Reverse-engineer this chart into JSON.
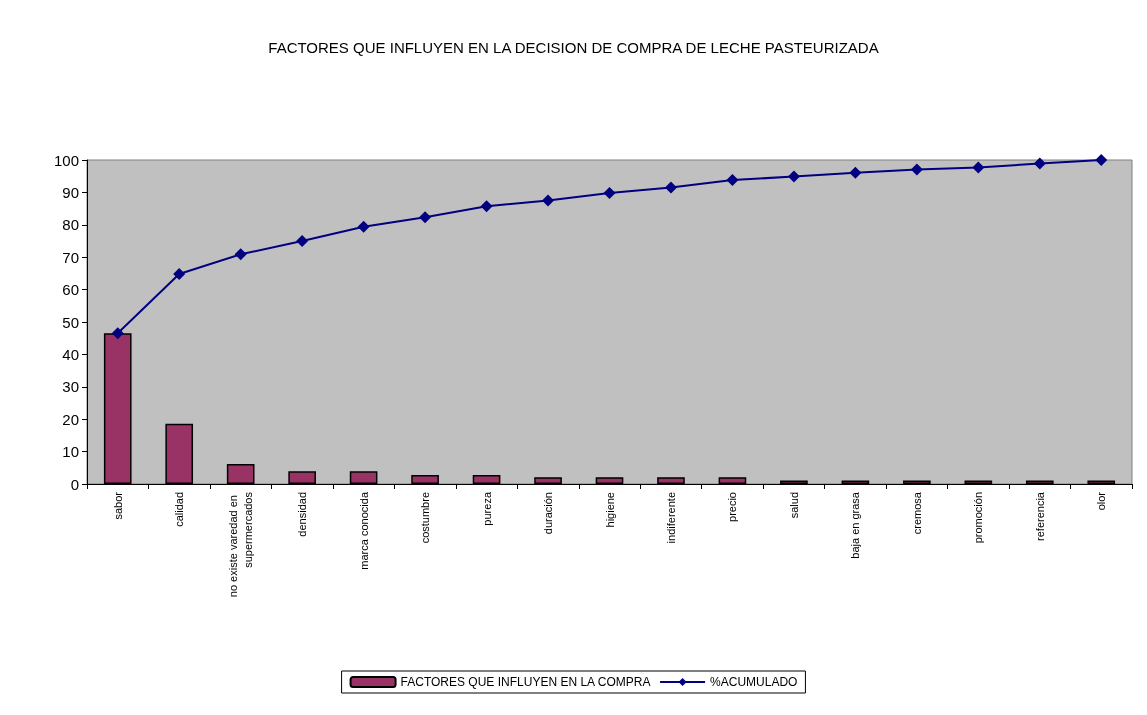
{
  "chart_data": {
    "type": "bar",
    "title": "FACTORES QUE INFLUYEN EN LA DECISION DE COMPRA DE LECHE PASTEURIZADA",
    "categories": [
      "sabor",
      "calidad",
      "no existe varedad en supermercados",
      "densidad",
      "marca conocida",
      "costumbre",
      "pureza",
      "duración",
      "higiene",
      "indiferente",
      "precio",
      "salud",
      "baja en grasa",
      "cremosa",
      "promoción",
      "referencia",
      "olor"
    ],
    "series": [
      {
        "name": "FACTORES QUE INFLUYEN EN LA COMPRA",
        "color": "#993366",
        "values": [
          46.5,
          18.6,
          6.2,
          3.9,
          3.9,
          2.8,
          2.8,
          2.1,
          2.1,
          2.1,
          2.1,
          1.1,
          1.1,
          1.1,
          1.1,
          1.1,
          1.1
        ]
      },
      {
        "name": "%ACUMULADO",
        "type": "line",
        "color": "#000080",
        "marker": "diamond",
        "values": [
          46.5,
          64.8,
          70.9,
          75,
          79.4,
          82.3,
          85.7,
          87.5,
          89.8,
          91.5,
          93.8,
          94.9,
          96.1,
          97.1,
          97.7,
          98.9,
          100
        ]
      }
    ],
    "ylim": [
      0,
      100
    ],
    "yticks": [
      0,
      10,
      20,
      30,
      40,
      50,
      60,
      70,
      80,
      90,
      100
    ],
    "grid": false,
    "legend": "bottom"
  }
}
